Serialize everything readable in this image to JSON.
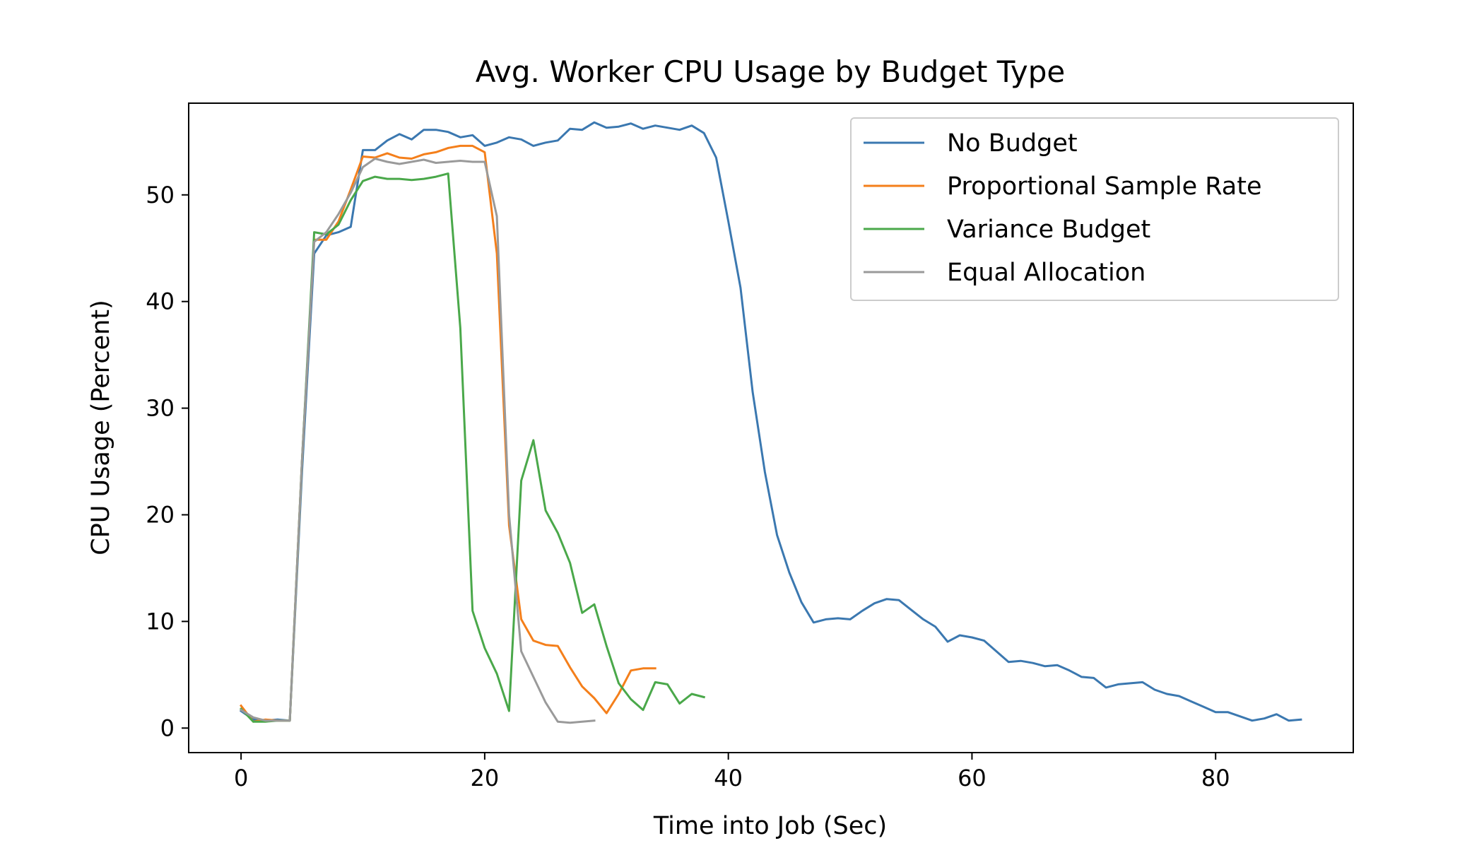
{
  "chart_data": {
    "type": "line",
    "title": "Avg. Worker CPU Usage by Budget Type",
    "xlabel": "Time into Job (Sec)",
    "ylabel": "CPU Usage (Percent)",
    "xlim": [
      -4.3,
      91.3
    ],
    "ylim": [
      -2.3,
      58.6
    ],
    "xticks": [
      0,
      20,
      40,
      60,
      80
    ],
    "yticks": [
      0,
      10,
      20,
      30,
      40,
      50
    ],
    "grid": false,
    "legend_position": "top-right",
    "series": [
      {
        "name": "No Budget",
        "color": "#3b78b0",
        "x": [
          0,
          1,
          2,
          3,
          4,
          5,
          6,
          7,
          8,
          9,
          10,
          11,
          12,
          13,
          14,
          15,
          16,
          17,
          18,
          19,
          20,
          21,
          22,
          23,
          24,
          25,
          26,
          27,
          28,
          29,
          30,
          31,
          32,
          33,
          34,
          35,
          36,
          37,
          38,
          39,
          40,
          41,
          42,
          43,
          44,
          45,
          46,
          47,
          48,
          49,
          50,
          51,
          52,
          53,
          54,
          55,
          56,
          57,
          58,
          59,
          60,
          61,
          62,
          63,
          64,
          65,
          66,
          67,
          68,
          69,
          70,
          71,
          72,
          73,
          74,
          75,
          76,
          77,
          78,
          79,
          80,
          81,
          82,
          83,
          84,
          85,
          86,
          87
        ],
        "y": [
          1.6,
          0.8,
          0.7,
          0.8,
          0.7,
          24.0,
          44.5,
          46.2,
          46.5,
          47.0,
          54.2,
          54.2,
          55.1,
          55.7,
          55.2,
          56.1,
          56.1,
          55.9,
          55.4,
          55.6,
          54.6,
          54.9,
          55.4,
          55.2,
          54.6,
          54.9,
          55.1,
          56.2,
          56.1,
          56.8,
          56.3,
          56.4,
          56.7,
          56.2,
          56.5,
          56.3,
          56.1,
          56.5,
          55.8,
          53.5,
          47.5,
          41.3,
          31.5,
          24.0,
          18.1,
          14.6,
          11.8,
          9.9,
          10.2,
          10.3,
          10.2,
          11.0,
          11.7,
          12.1,
          12.0,
          11.1,
          10.2,
          9.5,
          8.1,
          8.7,
          8.5,
          8.2,
          7.2,
          6.2,
          6.3,
          6.1,
          5.8,
          5.9,
          5.4,
          4.8,
          4.7,
          3.8,
          4.1,
          4.2,
          4.3,
          3.6,
          3.2,
          3.0,
          2.5,
          2.0,
          1.5,
          1.5,
          1.1,
          0.7,
          0.9,
          1.3,
          0.7,
          0.8
        ]
      },
      {
        "name": "Proportional Sample Rate",
        "color": "#f47f1b",
        "x": [
          0,
          1,
          2,
          3,
          4,
          5,
          6,
          7,
          8,
          9,
          10,
          11,
          12,
          13,
          14,
          15,
          16,
          17,
          18,
          19,
          20,
          21,
          22,
          23,
          24,
          25,
          26,
          27,
          28,
          29,
          30,
          31,
          32,
          33,
          34
        ],
        "y": [
          2.1,
          0.6,
          0.8,
          0.7,
          0.7,
          25.0,
          45.8,
          45.8,
          47.5,
          50.5,
          53.6,
          53.5,
          53.9,
          53.5,
          53.4,
          53.8,
          54.0,
          54.4,
          54.6,
          54.6,
          54.0,
          44.5,
          19.0,
          10.2,
          8.2,
          7.8,
          7.7,
          5.7,
          3.9,
          2.8,
          1.4,
          3.2,
          5.4,
          5.6,
          5.6
        ]
      },
      {
        "name": "Variance Budget",
        "color": "#4aa84a",
        "x": [
          0,
          1,
          2,
          3,
          4,
          5,
          6,
          7,
          8,
          9,
          10,
          11,
          12,
          13,
          14,
          15,
          16,
          17,
          18,
          19,
          20,
          21,
          22,
          23,
          24,
          25,
          26,
          27,
          28,
          29,
          30,
          31,
          32,
          33,
          34,
          35,
          36,
          37,
          38
        ],
        "y": [
          1.8,
          0.6,
          0.6,
          0.7,
          0.7,
          25.0,
          46.5,
          46.3,
          47.2,
          49.5,
          51.3,
          51.7,
          51.5,
          51.5,
          51.4,
          51.5,
          51.7,
          52.0,
          37.5,
          11.0,
          7.5,
          5.1,
          1.6,
          23.2,
          27.0,
          20.4,
          18.3,
          15.5,
          10.8,
          11.6,
          7.7,
          4.2,
          2.7,
          1.7,
          4.3,
          4.1,
          2.3,
          3.2,
          2.9
        ]
      },
      {
        "name": "Equal Allocation",
        "color": "#9a9a9a",
        "x": [
          0,
          1,
          2,
          3,
          4,
          5,
          6,
          7,
          8,
          9,
          10,
          11,
          12,
          13,
          14,
          15,
          16,
          17,
          18,
          19,
          20,
          21,
          22,
          23,
          24,
          25,
          26,
          27,
          28,
          29
        ],
        "y": [
          1.7,
          1.0,
          0.7,
          0.7,
          0.7,
          25.0,
          45.6,
          46.5,
          48.2,
          50.2,
          52.6,
          53.4,
          53.1,
          52.9,
          53.1,
          53.3,
          53.0,
          53.1,
          53.2,
          53.1,
          53.1,
          48.0,
          20.0,
          7.2,
          4.8,
          2.4,
          0.6,
          0.5,
          0.6,
          0.7
        ]
      }
    ]
  }
}
